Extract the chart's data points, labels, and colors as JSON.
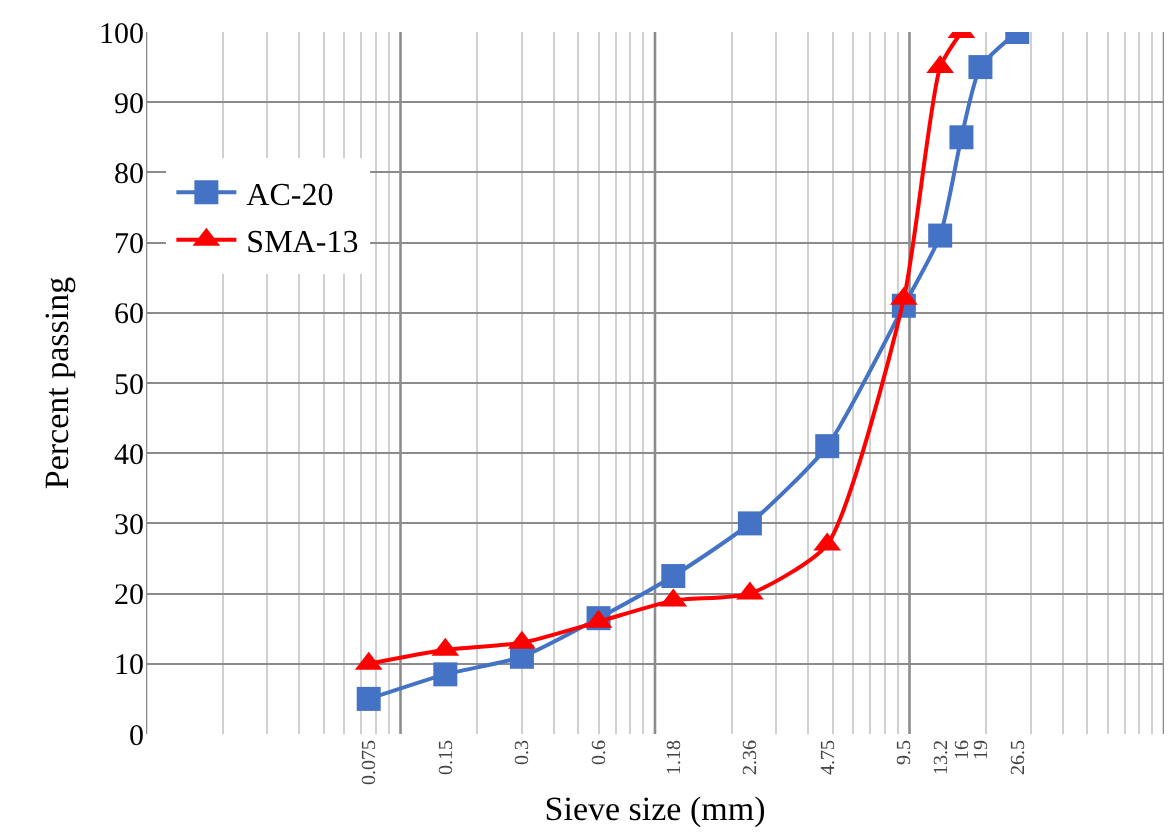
{
  "chart_data": {
    "type": "line",
    "xlabel": "Sieve size (mm)",
    "ylabel": "Percent passing",
    "log": "x",
    "grid": true,
    "legend": "top left",
    "line_style": "solid",
    "x": [
      0.075,
      0.15,
      0.3,
      0.6,
      1.18,
      2.36,
      4.75,
      9.5,
      13.2,
      16,
      19,
      26.5
    ],
    "xlim": [
      0.01,
      100
    ],
    "xticks": [
      0.075,
      0.15,
      0.3,
      0.6,
      1.18,
      2.36,
      4.75,
      9.5,
      13.2,
      16,
      19,
      26.5
    ],
    "ylim": [
      0,
      100
    ],
    "yticks": [
      0,
      10,
      20,
      30,
      40,
      50,
      60,
      70,
      80,
      90,
      100
    ],
    "series": [
      {
        "name": "AC-20",
        "color": "#4472c4",
        "marker": "square",
        "values": [
          5,
          8.5,
          11,
          16.5,
          22.5,
          30,
          41,
          61,
          71,
          85,
          95,
          100
        ]
      },
      {
        "name": "SMA-13",
        "color": "#ff0000",
        "marker": "triangle",
        "x": [
          0.075,
          0.15,
          0.3,
          0.6,
          1.18,
          2.36,
          4.75,
          9.5,
          13.2,
          16
        ],
        "values": [
          10,
          12,
          13,
          16,
          19,
          20,
          27,
          62,
          95,
          100
        ]
      }
    ]
  }
}
